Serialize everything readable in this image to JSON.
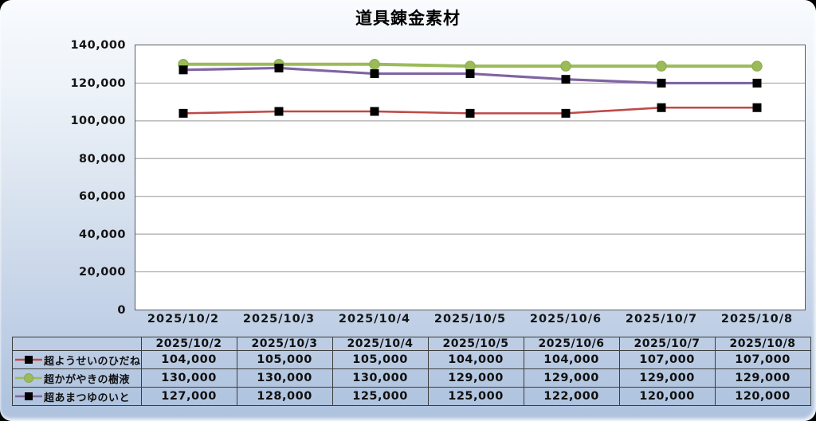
{
  "title": "道具錬金素材",
  "chart_data": {
    "type": "line",
    "title": "道具錬金素材",
    "categories": [
      "2025/10/2",
      "2025/10/3",
      "2025/10/4",
      "2025/10/5",
      "2025/10/6",
      "2025/10/7",
      "2025/10/8"
    ],
    "series": [
      {
        "name": "超ようせいのひだね",
        "color": "#be4a47",
        "line_width": 2.6,
        "marker": "square",
        "marker_color": "#000000",
        "values": [
          104000,
          105000,
          105000,
          104000,
          104000,
          107000,
          107000
        ]
      },
      {
        "name": "超かがやきの樹液",
        "color": "#9bbb59",
        "line_width": 4,
        "marker": "circle",
        "marker_color": "#9bbb59",
        "values": [
          130000,
          130000,
          130000,
          129000,
          129000,
          129000,
          129000
        ]
      },
      {
        "name": "超あまつゆのいと",
        "color": "#8064a2",
        "line_width": 3.2,
        "marker": "square",
        "marker_color": "#000000",
        "values": [
          127000,
          128000,
          125000,
          125000,
          122000,
          120000,
          120000
        ]
      }
    ],
    "ylim": [
      0,
      140000
    ],
    "ytick_step": 20000,
    "ytick_labels": [
      "140,000",
      "120,000",
      "100,000",
      "80,000",
      "60,000",
      "40,000",
      "20,000",
      "0"
    ],
    "grid": true,
    "grid_color": "#a8a8a8",
    "plot_border_color": "#5a5a5a",
    "plot_background": "#ffffff",
    "legend_position": "table-left-column"
  },
  "table": {
    "columns": [
      "2025/10/2",
      "2025/10/3",
      "2025/10/4",
      "2025/10/5",
      "2025/10/6",
      "2025/10/7",
      "2025/10/8"
    ],
    "rows": [
      {
        "values": [
          "104,000",
          "105,000",
          "105,000",
          "104,000",
          "104,000",
          "107,000",
          "107,000"
        ]
      },
      {
        "values": [
          "130,000",
          "130,000",
          "130,000",
          "129,000",
          "129,000",
          "129,000",
          "129,000"
        ]
      },
      {
        "values": [
          "127,000",
          "128,000",
          "125,000",
          "125,000",
          "122,000",
          "120,000",
          "120,000"
        ]
      }
    ]
  }
}
